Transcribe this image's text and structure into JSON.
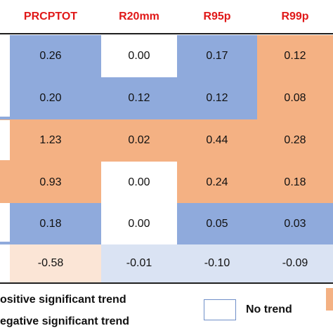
{
  "colors": {
    "header_text": "#e01818",
    "positive_significant": "#f4b183",
    "negative_significant": "#8faadc",
    "no_trend": "#ffffff",
    "positive_nonsig": "#fbe5d6",
    "negative_nonsig": "#dae3f3",
    "rule_line": "#1f1f1f"
  },
  "table": {
    "headers": [
      "PRCPTOT",
      "R20mm",
      "R95p",
      "R99p"
    ],
    "rows": [
      [
        "0.26",
        "0.00",
        "0.17",
        "0.12"
      ],
      [
        "0.20",
        "0.12",
        "0.12",
        "0.08"
      ],
      [
        "1.23",
        "0.02",
        "0.44",
        "0.28"
      ],
      [
        "0.93",
        "0.00",
        "0.24",
        "0.18"
      ],
      [
        "0.18",
        "0.00",
        "0.05",
        "0.03"
      ],
      [
        "-0.58",
        "-0.01",
        "-0.10",
        "-0.09"
      ]
    ],
    "fills": [
      [
        "negative_significant",
        "no_trend",
        "negative_significant",
        "positive_significant"
      ],
      [
        "negative_significant",
        "negative_significant",
        "negative_significant",
        "positive_significant"
      ],
      [
        "positive_significant",
        "positive_significant",
        "positive_significant",
        "positive_significant"
      ],
      [
        "positive_significant",
        "no_trend",
        "positive_significant",
        "positive_significant"
      ],
      [
        "negative_significant",
        "no_trend",
        "negative_significant",
        "negative_significant"
      ],
      [
        "positive_nonsig",
        "negative_nonsig",
        "negative_nonsig",
        "negative_nonsig"
      ]
    ]
  },
  "legend": {
    "positive_label": "ositive significant trend",
    "negative_label": "egative significant trend",
    "no_trend_label": "No trend"
  }
}
